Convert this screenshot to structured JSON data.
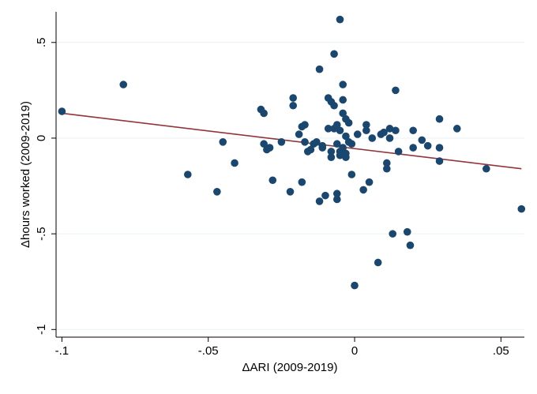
{
  "chart_data": {
    "type": "scatter",
    "title": "",
    "xlabel": "ΔARI (2009-2019)",
    "ylabel": "Δhours worked (2009-2019)",
    "xlim": [
      -0.102,
      0.058
    ],
    "ylim": [
      -1.04,
      0.66
    ],
    "x_ticks": [
      {
        "value": -0.1,
        "label": "-.1"
      },
      {
        "value": -0.05,
        "label": "-.05"
      },
      {
        "value": 0,
        "label": "0"
      },
      {
        "value": 0.05,
        "label": ".05"
      }
    ],
    "y_ticks": [
      {
        "value": -1,
        "label": "-1"
      },
      {
        "value": -0.5,
        "label": "-.5"
      },
      {
        "value": 0,
        "label": "0"
      },
      {
        "value": 0.5,
        "label": ".5"
      }
    ],
    "grid": "horizontal",
    "marker_color": "#1a476f",
    "fit_color": "#90353b",
    "points": [
      {
        "x": -0.1,
        "y": 0.14
      },
      {
        "x": -0.079,
        "y": 0.28
      },
      {
        "x": -0.057,
        "y": -0.19
      },
      {
        "x": -0.047,
        "y": -0.28
      },
      {
        "x": -0.045,
        "y": -0.02
      },
      {
        "x": -0.041,
        "y": -0.13
      },
      {
        "x": -0.032,
        "y": 0.15
      },
      {
        "x": -0.031,
        "y": 0.13
      },
      {
        "x": -0.031,
        "y": -0.03
      },
      {
        "x": -0.03,
        "y": -0.06
      },
      {
        "x": -0.029,
        "y": -0.05
      },
      {
        "x": -0.028,
        "y": -0.22
      },
      {
        "x": -0.025,
        "y": -0.02
      },
      {
        "x": -0.022,
        "y": -0.28
      },
      {
        "x": -0.021,
        "y": 0.21
      },
      {
        "x": -0.021,
        "y": 0.17
      },
      {
        "x": -0.019,
        "y": 0.02
      },
      {
        "x": -0.018,
        "y": 0.06
      },
      {
        "x": -0.018,
        "y": -0.23
      },
      {
        "x": -0.017,
        "y": 0.07
      },
      {
        "x": -0.017,
        "y": -0.02
      },
      {
        "x": -0.016,
        "y": -0.07
      },
      {
        "x": -0.015,
        "y": -0.06
      },
      {
        "x": -0.014,
        "y": -0.03
      },
      {
        "x": -0.013,
        "y": -0.02
      },
      {
        "x": -0.012,
        "y": 0.36
      },
      {
        "x": -0.012,
        "y": -0.33
      },
      {
        "x": -0.011,
        "y": -0.04
      },
      {
        "x": -0.011,
        "y": -0.05
      },
      {
        "x": -0.01,
        "y": -0.3
      },
      {
        "x": -0.009,
        "y": 0.21
      },
      {
        "x": -0.009,
        "y": 0.05
      },
      {
        "x": -0.008,
        "y": 0.19
      },
      {
        "x": -0.008,
        "y": -0.07
      },
      {
        "x": -0.008,
        "y": -0.1
      },
      {
        "x": -0.007,
        "y": 0.44
      },
      {
        "x": -0.007,
        "y": 0.17
      },
      {
        "x": -0.007,
        "y": 0.05
      },
      {
        "x": -0.006,
        "y": 0.07
      },
      {
        "x": -0.006,
        "y": -0.03
      },
      {
        "x": -0.006,
        "y": -0.29
      },
      {
        "x": -0.006,
        "y": -0.32
      },
      {
        "x": -0.005,
        "y": 0.62
      },
      {
        "x": -0.005,
        "y": 0.04
      },
      {
        "x": -0.005,
        "y": -0.07
      },
      {
        "x": -0.005,
        "y": -0.09
      },
      {
        "x": -0.004,
        "y": 0.28
      },
      {
        "x": -0.004,
        "y": 0.2
      },
      {
        "x": -0.004,
        "y": 0.13
      },
      {
        "x": -0.004,
        "y": -0.05
      },
      {
        "x": -0.003,
        "y": 0.1
      },
      {
        "x": -0.003,
        "y": 0.01
      },
      {
        "x": -0.003,
        "y": -0.08
      },
      {
        "x": -0.003,
        "y": -0.1
      },
      {
        "x": -0.002,
        "y": 0.08
      },
      {
        "x": -0.002,
        "y": -0.02
      },
      {
        "x": -0.001,
        "y": -0.03
      },
      {
        "x": -0.001,
        "y": -0.19
      },
      {
        "x": 0,
        "y": -0.77
      },
      {
        "x": 0.001,
        "y": 0.02
      },
      {
        "x": 0.003,
        "y": -0.27
      },
      {
        "x": 0.004,
        "y": 0.07
      },
      {
        "x": 0.004,
        "y": 0.04
      },
      {
        "x": 0.005,
        "y": -0.23
      },
      {
        "x": 0.006,
        "y": 0.0
      },
      {
        "x": 0.008,
        "y": -0.65
      },
      {
        "x": 0.009,
        "y": 0.02
      },
      {
        "x": 0.01,
        "y": 0.03
      },
      {
        "x": 0.011,
        "y": -0.13
      },
      {
        "x": 0.011,
        "y": -0.16
      },
      {
        "x": 0.012,
        "y": 0.05
      },
      {
        "x": 0.012,
        "y": 0.0
      },
      {
        "x": 0.013,
        "y": -0.5
      },
      {
        "x": 0.014,
        "y": 0.25
      },
      {
        "x": 0.014,
        "y": 0.04
      },
      {
        "x": 0.015,
        "y": -0.07
      },
      {
        "x": 0.018,
        "y": -0.49
      },
      {
        "x": 0.019,
        "y": -0.56
      },
      {
        "x": 0.02,
        "y": 0.04
      },
      {
        "x": 0.02,
        "y": -0.05
      },
      {
        "x": 0.023,
        "y": -0.01
      },
      {
        "x": 0.025,
        "y": -0.04
      },
      {
        "x": 0.029,
        "y": 0.1
      },
      {
        "x": 0.029,
        "y": -0.05
      },
      {
        "x": 0.029,
        "y": -0.12
      },
      {
        "x": 0.035,
        "y": 0.05
      },
      {
        "x": 0.045,
        "y": -0.16
      },
      {
        "x": 0.057,
        "y": -0.37
      }
    ],
    "fit_line": {
      "x": [
        -0.1,
        0.057
      ],
      "y": [
        0.13,
        -0.16
      ]
    }
  }
}
